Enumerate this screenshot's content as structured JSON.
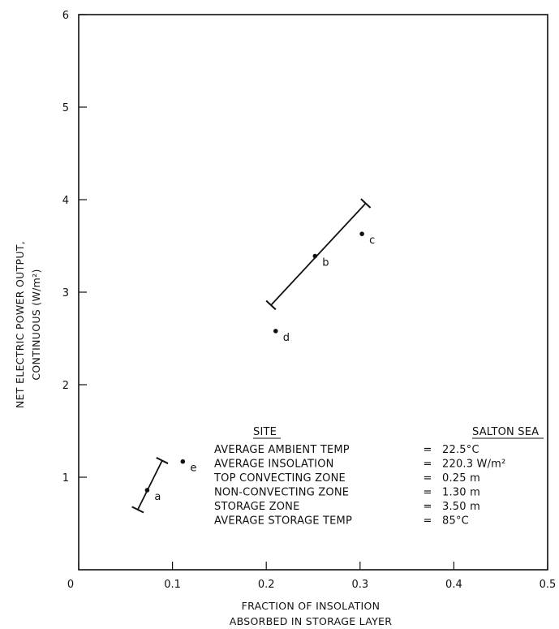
{
  "chart_data": {
    "type": "scatter",
    "xlabel_lines": [
      "FRACTION OF INSOLATION",
      "ABSORBED IN STORAGE LAYER"
    ],
    "ylabel_lines": [
      "NET ELECTRIC POWER OUTPUT,",
      "CONTINUOUS (W/m²)"
    ],
    "xlim": [
      0,
      0.5
    ],
    "ylim": [
      0,
      6
    ],
    "x_ticks": [
      {
        "value": 0,
        "label": "0"
      },
      {
        "value": 0.1,
        "label": "0.1"
      },
      {
        "value": 0.2,
        "label": "0.2"
      },
      {
        "value": 0.3,
        "label": "0.3"
      },
      {
        "value": 0.4,
        "label": "0.4"
      },
      {
        "value": 0.5,
        "label": "0.5"
      }
    ],
    "y_ticks": [
      {
        "value": 1,
        "label": "1"
      },
      {
        "value": 2,
        "label": "2"
      },
      {
        "value": 3,
        "label": "3"
      },
      {
        "value": 4,
        "label": "4"
      },
      {
        "value": 5,
        "label": "5"
      },
      {
        "value": 6,
        "label": "6"
      }
    ],
    "grid": false,
    "points": [
      {
        "label": "a",
        "x": 0.073,
        "y": 0.86
      },
      {
        "label": "b",
        "x": 0.252,
        "y": 3.39
      },
      {
        "label": "c",
        "x": 0.302,
        "y": 3.63
      },
      {
        "label": "d",
        "x": 0.21,
        "y": 2.58
      },
      {
        "label": "e",
        "x": 0.111,
        "y": 1.17
      }
    ],
    "ranges": [
      {
        "from": {
          "x": 0.063,
          "y": 0.65
        },
        "to": {
          "x": 0.089,
          "y": 1.18
        }
      },
      {
        "from": {
          "x": 0.205,
          "y": 2.86
        },
        "to": {
          "x": 0.306,
          "y": 3.96
        }
      }
    ],
    "legend": {
      "header_left": "SITE",
      "header_right": "SALTON SEA",
      "rows": [
        {
          "label": "AVERAGE AMBIENT TEMP",
          "sep": "=",
          "value": "22.5°C"
        },
        {
          "label": "AVERAGE INSOLATION",
          "sep": "=",
          "value": "220.3 W/m²"
        },
        {
          "label": "TOP CONVECTING ZONE",
          "sep": "=",
          "value": "0.25 m"
        },
        {
          "label": "NON-CONVECTING ZONE",
          "sep": "=",
          "value": "1.30 m"
        },
        {
          "label": "STORAGE ZONE",
          "sep": "=",
          "value": "3.50 m"
        },
        {
          "label": "AVERAGE STORAGE TEMP",
          "sep": "=",
          "value": "85°C"
        }
      ]
    }
  }
}
